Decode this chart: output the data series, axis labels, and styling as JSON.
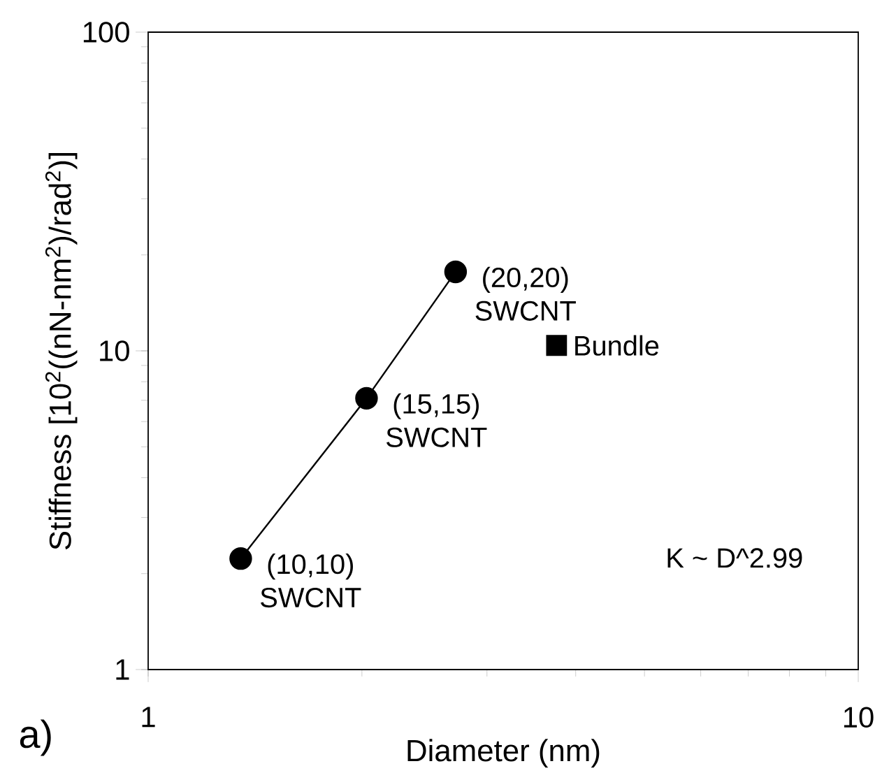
{
  "chart_data": {
    "type": "line",
    "xlabel": "Diameter (nm)",
    "ylabel": "Stiffness [10$^{2}$((nN-nm$^{2}$)/rad$^{2}$)]",
    "log": "xy",
    "xlim": [
      1,
      10
    ],
    "xticks": [
      1,
      10
    ],
    "ylim": [
      1,
      100
    ],
    "yticks": [
      1,
      10,
      100
    ],
    "grid": false,
    "legend": false,
    "series": [
      {
        "color": "#000000",
        "marker": "circle",
        "line_style": "solid",
        "x": [
          1.35,
          2.03,
          2.71
        ],
        "values": [
          2.23,
          7.1,
          17.7
        ]
      },
      {
        "type": "scatter",
        "name": "Bundle",
        "color": "#000000",
        "marker": "square",
        "x": [
          3.76
        ],
        "values": [
          10.4
        ]
      }
    ],
    "annotations": [
      {
        "text": "(10,10) SWCNT",
        "x": 1.35,
        "y": 2.23
      },
      {
        "text": "(15,15) SWCNT",
        "x": 2.03,
        "y": 7.1
      },
      {
        "text": "(20,20) SWCNT",
        "x": 2.71,
        "y": 17.7
      },
      "K ~ D^2.99",
      "a)"
    ]
  }
}
